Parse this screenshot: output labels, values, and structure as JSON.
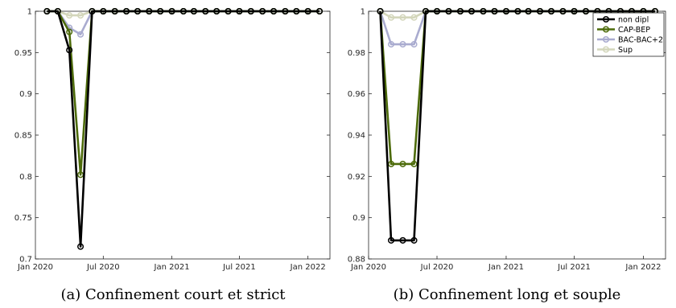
{
  "chart_data": [
    {
      "type": "line",
      "caption": "(a) Confinement court et strict",
      "x": [
        "2020-02-01",
        "2020-03-01",
        "2020-04-01",
        "2020-05-01",
        "2020-06-01",
        "2020-07-01",
        "2020-08-01",
        "2020-09-01",
        "2020-10-01",
        "2020-11-01",
        "2020-12-01",
        "2021-01-01",
        "2021-02-01",
        "2021-03-01",
        "2021-04-01",
        "2021-05-01",
        "2021-06-01",
        "2021-07-01",
        "2021-08-01",
        "2021-09-01",
        "2021-10-01",
        "2021-11-01",
        "2021-12-01",
        "2022-01-01",
        "2022-02-01"
      ],
      "xticks": [
        "Jan 2020",
        "Jul 2020",
        "Jan 2021",
        "Jul 2021",
        "Jan 2022"
      ],
      "yticks": [
        "0.7",
        "0.75",
        "0.8",
        "0.85",
        "0.9",
        "0.95",
        "1"
      ],
      "ylim": [
        0.7,
        1
      ],
      "grid": false,
      "series": [
        {
          "name": "non dipl",
          "color": "#000000",
          "values": [
            1,
            1,
            0.953,
            0.715,
            1,
            1,
            1,
            1,
            1,
            1,
            1,
            1,
            1,
            1,
            1,
            1,
            1,
            1,
            1,
            1,
            1,
            1,
            1,
            1,
            1
          ]
        },
        {
          "name": "CAP-BEP",
          "color": "#4d6b0a",
          "values": [
            1,
            1,
            0.975,
            0.802,
            1,
            1,
            1,
            1,
            1,
            1,
            1,
            1,
            1,
            1,
            1,
            1,
            1,
            1,
            1,
            1,
            1,
            1,
            1,
            1,
            1
          ]
        },
        {
          "name": "BAC-BAC+2",
          "color": "#a9abcf",
          "values": [
            1,
            1,
            0.98,
            0.972,
            1,
            1,
            1,
            1,
            1,
            1,
            1,
            1,
            1,
            1,
            1,
            1,
            1,
            1,
            1,
            1,
            1,
            1,
            1,
            1,
            1
          ]
        },
        {
          "name": "Sup",
          "color": "#d3d6bb",
          "values": [
            1,
            1,
            0.995,
            0.995,
            1,
            1,
            1,
            1,
            1,
            1,
            1,
            1,
            1,
            1,
            1,
            1,
            1,
            1,
            1,
            1,
            1,
            1,
            1,
            1,
            1
          ]
        }
      ]
    },
    {
      "type": "line",
      "caption": "(b) Confinement long et souple",
      "x": [
        "2020-02-01",
        "2020-03-01",
        "2020-04-01",
        "2020-05-01",
        "2020-06-01",
        "2020-07-01",
        "2020-08-01",
        "2020-09-01",
        "2020-10-01",
        "2020-11-01",
        "2020-12-01",
        "2021-01-01",
        "2021-02-01",
        "2021-03-01",
        "2021-04-01",
        "2021-05-01",
        "2021-06-01",
        "2021-07-01",
        "2021-08-01",
        "2021-09-01",
        "2021-10-01",
        "2021-11-01",
        "2021-12-01",
        "2022-01-01",
        "2022-02-01"
      ],
      "xticks": [
        "Jan 2020",
        "Jul 2020",
        "Jan 2021",
        "Jul 2021",
        "Jan 2022"
      ],
      "yticks": [
        "0.88",
        "0.9",
        "0.92",
        "0.94",
        "0.96",
        "0.98",
        "1"
      ],
      "ylim": [
        0.88,
        1
      ],
      "grid": false,
      "legend": "top-right",
      "series": [
        {
          "name": "non dipl",
          "color": "#000000",
          "values": [
            1,
            0.889,
            0.889,
            0.889,
            1,
            1,
            1,
            1,
            1,
            1,
            1,
            1,
            1,
            1,
            1,
            1,
            1,
            1,
            1,
            1,
            1,
            1,
            1,
            1,
            1
          ]
        },
        {
          "name": "CAP-BEP",
          "color": "#4d6b0a",
          "values": [
            1,
            0.926,
            0.926,
            0.926,
            1,
            1,
            1,
            1,
            1,
            1,
            1,
            1,
            1,
            1,
            1,
            1,
            1,
            1,
            1,
            1,
            1,
            1,
            1,
            1,
            1
          ]
        },
        {
          "name": "BAC-BAC+2",
          "color": "#a9abcf",
          "values": [
            1,
            0.984,
            0.984,
            0.984,
            1,
            1,
            1,
            1,
            1,
            1,
            1,
            1,
            1,
            1,
            1,
            1,
            1,
            1,
            1,
            1,
            1,
            1,
            1,
            1,
            1
          ]
        },
        {
          "name": "Sup",
          "color": "#d3d6bb",
          "values": [
            1,
            0.997,
            0.997,
            0.997,
            1,
            1,
            1,
            1,
            1,
            1,
            1,
            1,
            1,
            1,
            1,
            1,
            1,
            1,
            1,
            1,
            1,
            1,
            1,
            1,
            1
          ]
        }
      ]
    }
  ]
}
